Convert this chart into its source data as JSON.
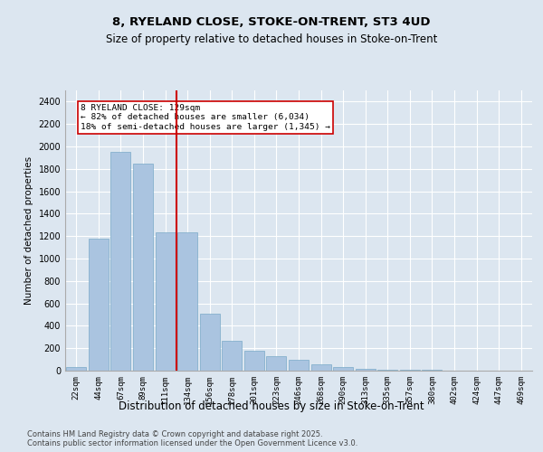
{
  "title_line1": "8, RYELAND CLOSE, STOKE-ON-TRENT, ST3 4UD",
  "title_line2": "Size of property relative to detached houses in Stoke-on-Trent",
  "xlabel": "Distribution of detached houses by size in Stoke-on-Trent",
  "ylabel": "Number of detached properties",
  "categories": [
    "22sqm",
    "44sqm",
    "67sqm",
    "89sqm",
    "111sqm",
    "134sqm",
    "156sqm",
    "178sqm",
    "201sqm",
    "223sqm",
    "246sqm",
    "268sqm",
    "290sqm",
    "313sqm",
    "335sqm",
    "357sqm",
    "380sqm",
    "402sqm",
    "424sqm",
    "447sqm",
    "469sqm"
  ],
  "values": [
    30,
    1175,
    1950,
    1850,
    1230,
    1230,
    510,
    265,
    175,
    130,
    100,
    55,
    30,
    15,
    10,
    5,
    5,
    3,
    2,
    2,
    2
  ],
  "bar_color": "#aac4e0",
  "bar_edge_color": "#7aaac8",
  "vline_index": 5,
  "vline_color": "#cc0000",
  "annotation_text": "8 RYELAND CLOSE: 129sqm\n← 82% of detached houses are smaller (6,034)\n18% of semi-detached houses are larger (1,345) →",
  "annotation_box_color": "#ffffff",
  "annotation_box_edge_color": "#cc0000",
  "ylim": [
    0,
    2500
  ],
  "yticks": [
    0,
    200,
    400,
    600,
    800,
    1000,
    1200,
    1400,
    1600,
    1800,
    2000,
    2200,
    2400
  ],
  "background_color": "#dce6f0",
  "grid_color": "#ffffff",
  "footer_line1": "Contains HM Land Registry data © Crown copyright and database right 2025.",
  "footer_line2": "Contains public sector information licensed under the Open Government Licence v3.0."
}
